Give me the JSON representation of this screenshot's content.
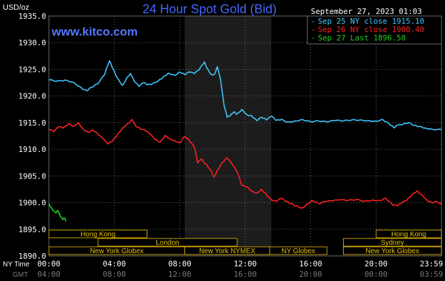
{
  "chart_data": {
    "type": "line",
    "title": "24 Hour Spot Gold (Bid)",
    "watermark": "www.kitco.com",
    "timestamp": "September 27, 2023 01:03",
    "ylabel": "USD/oz",
    "ylim": [
      1890,
      1935
    ],
    "yticks": [
      "1935.0",
      "1930.0",
      "1925.0",
      "1920.0",
      "1915.0",
      "1910.0",
      "1905.0",
      "1900.0",
      "1895.0",
      "1890.0"
    ],
    "x_row_label": "NY Time",
    "x_row2_label": "GMT",
    "xticks_ny": [
      "00:00",
      "04:00",
      "08:00",
      "12:00",
      "16:00",
      "20:00",
      "23:59"
    ],
    "xticks_gmt": [
      "04:00",
      "08:00",
      "12:00",
      "16:00",
      "20:00",
      "00:00",
      "03:59"
    ],
    "xlim_hours": [
      0,
      24
    ],
    "shaded_region_hours": [
      8.3,
      13.6
    ],
    "grid": true,
    "legend": [
      {
        "label": "Sep 25 NY close 1915.10",
        "color": "#3fc8ff"
      },
      {
        "label": "Sep 26 NY close 1900.40",
        "color": "#ff2020"
      },
      {
        "label": "Sep 27 Last 1896.50",
        "color": "#20d020"
      }
    ],
    "series": [
      {
        "color": "#3fc8ff",
        "points": [
          [
            0.0,
            1923.0
          ],
          [
            0.5,
            1922.8
          ],
          [
            1.0,
            1923.0
          ],
          [
            1.5,
            1922.6
          ],
          [
            2.0,
            1921.5
          ],
          [
            2.3,
            1921.0
          ],
          [
            2.6,
            1921.6
          ],
          [
            3.0,
            1922.3
          ],
          [
            3.4,
            1924.0
          ],
          [
            3.7,
            1926.6
          ],
          [
            3.9,
            1925.2
          ],
          [
            4.2,
            1923.3
          ],
          [
            4.5,
            1922.0
          ],
          [
            4.8,
            1923.6
          ],
          [
            5.0,
            1924.2
          ],
          [
            5.2,
            1922.9
          ],
          [
            5.5,
            1921.8
          ],
          [
            5.8,
            1922.5
          ],
          [
            6.0,
            1922.1
          ],
          [
            6.3,
            1922.2
          ],
          [
            6.7,
            1922.9
          ],
          [
            7.0,
            1923.6
          ],
          [
            7.3,
            1924.3
          ],
          [
            7.7,
            1923.9
          ],
          [
            8.0,
            1924.5
          ],
          [
            8.3,
            1924.0
          ],
          [
            8.6,
            1924.5
          ],
          [
            8.9,
            1924.2
          ],
          [
            9.2,
            1925.0
          ],
          [
            9.5,
            1926.4
          ],
          [
            9.7,
            1925.1
          ],
          [
            9.9,
            1924.1
          ],
          [
            10.1,
            1924.0
          ],
          [
            10.3,
            1925.5
          ],
          [
            10.5,
            1923.0
          ],
          [
            10.7,
            1918.3
          ],
          [
            10.9,
            1916.0
          ],
          [
            11.1,
            1916.3
          ],
          [
            11.3,
            1917.0
          ],
          [
            11.5,
            1916.6
          ],
          [
            11.8,
            1917.5
          ],
          [
            12.1,
            1916.5
          ],
          [
            12.4,
            1916.3
          ],
          [
            12.7,
            1915.4
          ],
          [
            13.0,
            1916.0
          ],
          [
            13.3,
            1915.5
          ],
          [
            13.6,
            1916.2
          ],
          [
            13.9,
            1915.4
          ],
          [
            14.2,
            1915.6
          ],
          [
            14.6,
            1915.1
          ],
          [
            15.0,
            1915.3
          ],
          [
            15.5,
            1915.6
          ],
          [
            16.0,
            1915.2
          ],
          [
            16.5,
            1915.3
          ],
          [
            17.0,
            1915.1
          ],
          [
            17.5,
            1915.4
          ],
          [
            18.0,
            1915.3
          ],
          [
            18.5,
            1915.5
          ],
          [
            19.0,
            1915.5
          ],
          [
            19.5,
            1915.4
          ],
          [
            20.0,
            1915.3
          ],
          [
            20.4,
            1915.6
          ],
          [
            20.8,
            1914.8
          ],
          [
            21.1,
            1914.0
          ],
          [
            21.3,
            1914.5
          ],
          [
            21.6,
            1914.6
          ],
          [
            22.0,
            1915.0
          ],
          [
            22.3,
            1914.5
          ],
          [
            22.7,
            1914.3
          ],
          [
            23.0,
            1914.0
          ],
          [
            23.4,
            1913.8
          ],
          [
            23.99,
            1913.7
          ]
        ]
      },
      {
        "color": "#ff2020",
        "points": [
          [
            0.0,
            1913.8
          ],
          [
            0.3,
            1913.3
          ],
          [
            0.6,
            1914.2
          ],
          [
            0.9,
            1914.0
          ],
          [
            1.2,
            1914.8
          ],
          [
            1.5,
            1914.3
          ],
          [
            1.8,
            1915.0
          ],
          [
            2.1,
            1913.8
          ],
          [
            2.4,
            1913.2
          ],
          [
            2.7,
            1913.6
          ],
          [
            3.0,
            1912.8
          ],
          [
            3.3,
            1912.0
          ],
          [
            3.6,
            1911.0
          ],
          [
            3.9,
            1911.6
          ],
          [
            4.2,
            1912.8
          ],
          [
            4.5,
            1914.0
          ],
          [
            4.8,
            1914.8
          ],
          [
            5.1,
            1915.6
          ],
          [
            5.3,
            1914.4
          ],
          [
            5.6,
            1913.8
          ],
          [
            5.9,
            1913.5
          ],
          [
            6.2,
            1912.8
          ],
          [
            6.5,
            1911.8
          ],
          [
            6.8,
            1911.3
          ],
          [
            7.1,
            1912.6
          ],
          [
            7.4,
            1912.0
          ],
          [
            7.7,
            1911.6
          ],
          [
            8.0,
            1911.2
          ],
          [
            8.3,
            1912.4
          ],
          [
            8.6,
            1911.6
          ],
          [
            8.9,
            1910.3
          ],
          [
            9.1,
            1907.4
          ],
          [
            9.3,
            1908.2
          ],
          [
            9.6,
            1907.2
          ],
          [
            9.9,
            1906.1
          ],
          [
            10.1,
            1904.8
          ],
          [
            10.3,
            1906.1
          ],
          [
            10.6,
            1907.5
          ],
          [
            10.9,
            1908.4
          ],
          [
            11.2,
            1907.2
          ],
          [
            11.5,
            1905.8
          ],
          [
            11.8,
            1903.2
          ],
          [
            12.1,
            1903.0
          ],
          [
            12.4,
            1902.2
          ],
          [
            12.7,
            1901.8
          ],
          [
            13.0,
            1902.5
          ],
          [
            13.3,
            1901.5
          ],
          [
            13.6,
            1900.5
          ],
          [
            13.9,
            1900.2
          ],
          [
            14.2,
            1900.8
          ],
          [
            14.5,
            1900.2
          ],
          [
            14.8,
            1899.8
          ],
          [
            15.1,
            1899.4
          ],
          [
            15.5,
            1899.0
          ],
          [
            15.8,
            1899.8
          ],
          [
            16.1,
            1900.4
          ],
          [
            16.5,
            1899.8
          ],
          [
            16.9,
            1900.2
          ],
          [
            17.3,
            1900.3
          ],
          [
            17.8,
            1900.5
          ],
          [
            18.3,
            1900.4
          ],
          [
            18.8,
            1900.6
          ],
          [
            19.3,
            1900.3
          ],
          [
            19.8,
            1900.5
          ],
          [
            20.2,
            1900.4
          ],
          [
            20.6,
            1900.8
          ],
          [
            21.0,
            1899.6
          ],
          [
            21.3,
            1899.4
          ],
          [
            21.6,
            1900.0
          ],
          [
            21.9,
            1900.5
          ],
          [
            22.2,
            1901.5
          ],
          [
            22.5,
            1902.2
          ],
          [
            22.8,
            1901.5
          ],
          [
            23.1,
            1900.5
          ],
          [
            23.4,
            1900.0
          ],
          [
            23.7,
            1900.2
          ],
          [
            23.99,
            1899.6
          ]
        ]
      },
      {
        "color": "#20d020",
        "points": [
          [
            0.0,
            1899.8
          ],
          [
            0.2,
            1898.8
          ],
          [
            0.4,
            1898.1
          ],
          [
            0.55,
            1898.5
          ],
          [
            0.7,
            1897.4
          ],
          [
            0.85,
            1896.8
          ],
          [
            0.95,
            1897.1
          ],
          [
            1.05,
            1896.5
          ]
        ]
      }
    ],
    "sessions": [
      {
        "label": "Hong Kong",
        "row": 0,
        "start_hour": 0.0,
        "end_hour": 6.0
      },
      {
        "label": "Hong Kong",
        "row": 0,
        "start_hour": 20.0,
        "end_hour": 23.99
      },
      {
        "label": "London",
        "row": 1,
        "start_hour": 3.0,
        "end_hour": 11.5
      },
      {
        "label": "Sydney",
        "row": 1,
        "start_hour": 18.0,
        "end_hour": 23.99
      },
      {
        "label": "New York Globex",
        "row": 2,
        "start_hour": 0.0,
        "end_hour": 8.3
      },
      {
        "label": "New York NYMEX",
        "row": 2,
        "start_hour": 8.3,
        "end_hour": 13.5
      },
      {
        "label": "NY Globex",
        "row": 2,
        "start_hour": 13.5,
        "end_hour": 17.0
      },
      {
        "label": "New York Globex",
        "row": 2,
        "start_hour": 18.0,
        "end_hour": 23.99
      }
    ]
  }
}
